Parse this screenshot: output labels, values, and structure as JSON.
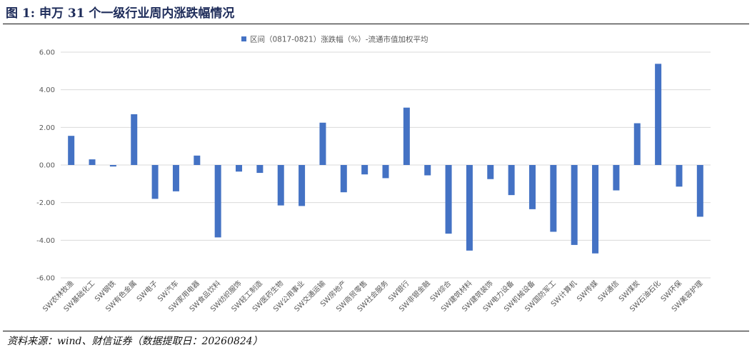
{
  "figure_title": "图 1:  申万 31 个一级行业周内涨跌幅情况",
  "source": "资料来源：wind、财信证券（数据提取日：20260824）",
  "chart_data": {
    "type": "bar",
    "title": "",
    "xlabel": "",
    "ylabel": "",
    "ylim": [
      -6.0,
      6.0
    ],
    "yticks": [
      "6.00",
      "4.00",
      "2.00",
      "0.00",
      "-2.00",
      "-4.00",
      "-6.00"
    ],
    "grid": true,
    "legend_position": "top-center",
    "bar_color": "#4472c4",
    "categories": [
      "SW农林牧渔",
      "SW基础化工",
      "SW钢铁",
      "SW有色金属",
      "SW电子",
      "SW汽车",
      "SW家用电器",
      "SW食品饮料",
      "SW纺织服饰",
      "SW轻工制造",
      "SW医药生物",
      "SW公用事业",
      "SW交通运输",
      "SW房地产",
      "SW商贸零售",
      "SW社会服务",
      "SW银行",
      "SW非银金融",
      "SW综合",
      "SW建筑材料",
      "SW建筑装饰",
      "SW电力设备",
      "SW机械设备",
      "SW国防军工",
      "SW计算机",
      "SW传媒",
      "SW通信",
      "SW煤炭",
      "SW石油石化",
      "SW环保",
      "SW美容护理"
    ],
    "series": [
      {
        "name": "区间（0817-0821）涨跌幅（%）-流通市值加权平均",
        "values": [
          1.55,
          0.3,
          -0.08,
          2.7,
          -1.8,
          -1.4,
          0.5,
          -3.85,
          -0.35,
          -0.42,
          -2.15,
          -2.18,
          2.25,
          -1.45,
          -0.5,
          -0.7,
          3.05,
          -0.55,
          -3.65,
          -4.55,
          -0.75,
          -1.6,
          -2.35,
          -3.55,
          -4.25,
          -4.7,
          -1.35,
          2.22,
          5.38,
          -1.15,
          -2.75
        ]
      }
    ]
  }
}
